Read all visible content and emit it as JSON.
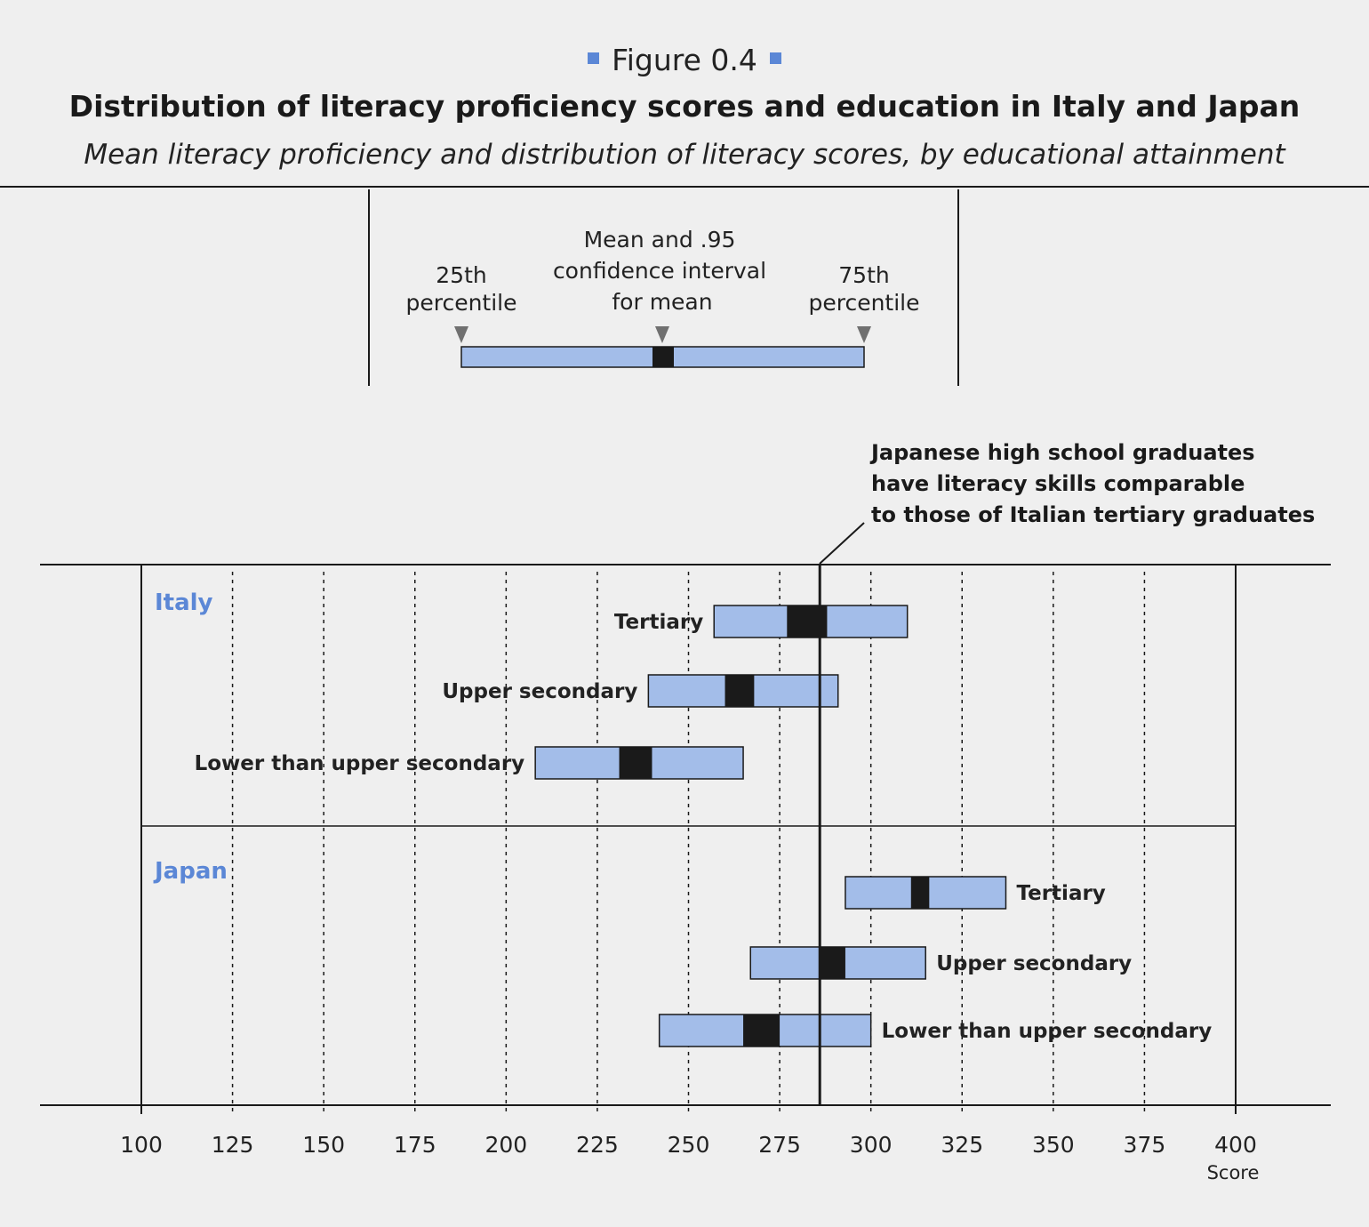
{
  "figure": {
    "label": "Figure 0.4",
    "title": "Distribution of literacy proficiency scores and education in Italy and Japan",
    "subtitle": "Mean literacy proficiency and distribution of literacy scores, by educational attainment"
  },
  "legend": {
    "mean_label_1": "Mean and .95",
    "mean_label_2": "confidence interval",
    "mean_label_3": "for mean",
    "p25_label_1": "25th",
    "p25_label_2": "percentile",
    "p75_label_1": "75th",
    "p75_label_2": "percentile"
  },
  "annotation": {
    "line_1": "Japanese high school graduates",
    "line_2": "have literacy skills comparable",
    "line_3": "to those of Italian tertiary graduates",
    "reference_value": 286
  },
  "colors": {
    "bar_fill": "#a3bde9",
    "ci_fill": "#1a1a1a",
    "country_label": "#5b87d6"
  },
  "chart_data": {
    "type": "range-bar",
    "xlabel": "Score",
    "xlim": [
      100,
      400
    ],
    "xticks": [
      100,
      125,
      150,
      175,
      200,
      225,
      250,
      275,
      300,
      325,
      350,
      375,
      400
    ],
    "grid": "dashed vertical",
    "groups": [
      {
        "name": "Italy",
        "label_side": "left",
        "rows": [
          {
            "category": "Tertiary",
            "p25": 257,
            "p75": 310,
            "ci_low": 277,
            "ci_high": 288
          },
          {
            "category": "Upper secondary",
            "p25": 239,
            "p75": 291,
            "ci_low": 260,
            "ci_high": 268
          },
          {
            "category": "Lower than upper secondary",
            "p25": 208,
            "p75": 265,
            "ci_low": 231,
            "ci_high": 240
          }
        ]
      },
      {
        "name": "Japan",
        "label_side": "right",
        "rows": [
          {
            "category": "Tertiary",
            "p25": 293,
            "p75": 337,
            "ci_low": 311,
            "ci_high": 316
          },
          {
            "category": "Upper secondary",
            "p25": 267,
            "p75": 315,
            "ci_low": 286,
            "ci_high": 293
          },
          {
            "category": "Lower than upper secondary",
            "p25": 242,
            "p75": 300,
            "ci_low": 265,
            "ci_high": 275
          }
        ]
      }
    ]
  }
}
